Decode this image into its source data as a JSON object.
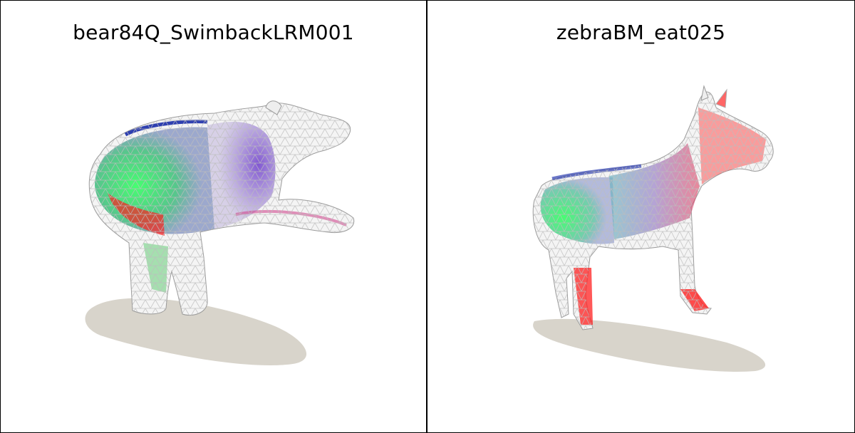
{
  "panels": [
    {
      "title": "bear84Q_SwimbackLRM001",
      "subject_icon": "bear-mesh-icon"
    },
    {
      "title": "zebraBM_eat025",
      "subject_icon": "zebra-mesh-icon"
    }
  ],
  "colors": {
    "background": "#ffffff",
    "border": "#000000",
    "shadow": "#d8d4cb",
    "wire": "#c8c8c8",
    "green": "#3dff6a",
    "purple": "#8e5cc8",
    "red": "#ff1a1a",
    "blue": "#2e3fb0"
  }
}
